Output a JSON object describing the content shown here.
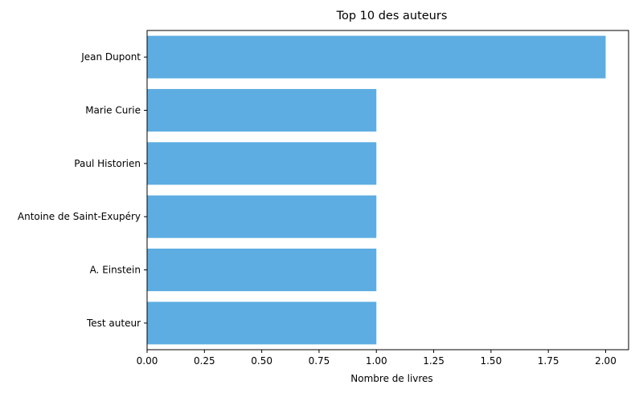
{
  "chart_data": {
    "type": "bar",
    "orientation": "horizontal",
    "title": "Top 10 des auteurs",
    "xlabel": "Nombre de livres",
    "ylabel": "",
    "categories": [
      "Jean Dupont",
      "Marie Curie",
      "Paul Historien",
      "Antoine de Saint-Exupéry",
      "A. Einstein",
      "Test auteur"
    ],
    "values": [
      2,
      1,
      1,
      1,
      1,
      1
    ],
    "xlim": [
      0,
      2.1
    ],
    "xticks": [
      "0.00",
      "0.25",
      "0.50",
      "0.75",
      "1.00",
      "1.25",
      "1.50",
      "1.75",
      "2.00"
    ],
    "grid": false,
    "bar_color": "#5dade2"
  }
}
